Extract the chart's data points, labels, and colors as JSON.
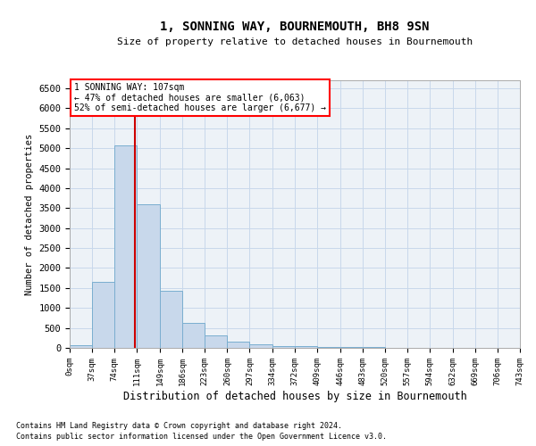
{
  "title": "1, SONNING WAY, BOURNEMOUTH, BH8 9SN",
  "subtitle": "Size of property relative to detached houses in Bournemouth",
  "xlabel": "Distribution of detached houses by size in Bournemouth",
  "ylabel": "Number of detached properties",
  "footnote1": "Contains HM Land Registry data © Crown copyright and database right 2024.",
  "footnote2": "Contains public sector information licensed under the Open Government Licence v3.0.",
  "annotation_line1": "1 SONNING WAY: 107sqm",
  "annotation_line2": "← 47% of detached houses are smaller (6,063)",
  "annotation_line3": "52% of semi-detached houses are larger (6,677) →",
  "bar_color": "#c8d8eb",
  "bar_edge_color": "#7aaed0",
  "grid_color": "#c8d8eb",
  "vline_color": "#cc0000",
  "vline_x": 107,
  "bin_edges": [
    0,
    37,
    74,
    111,
    149,
    186,
    223,
    260,
    297,
    334,
    372,
    409,
    446,
    483,
    520,
    557,
    594,
    632,
    669,
    706,
    743
  ],
  "bar_heights": [
    75,
    1650,
    5080,
    3600,
    1420,
    620,
    310,
    155,
    90,
    55,
    45,
    30,
    20,
    15,
    10,
    10,
    5,
    5,
    5,
    5
  ],
  "ylim": [
    0,
    6700
  ],
  "yticks": [
    0,
    500,
    1000,
    1500,
    2000,
    2500,
    3000,
    3500,
    4000,
    4500,
    5000,
    5500,
    6000,
    6500
  ],
  "background_color": "#ffffff",
  "plot_bg_color": "#edf2f7"
}
